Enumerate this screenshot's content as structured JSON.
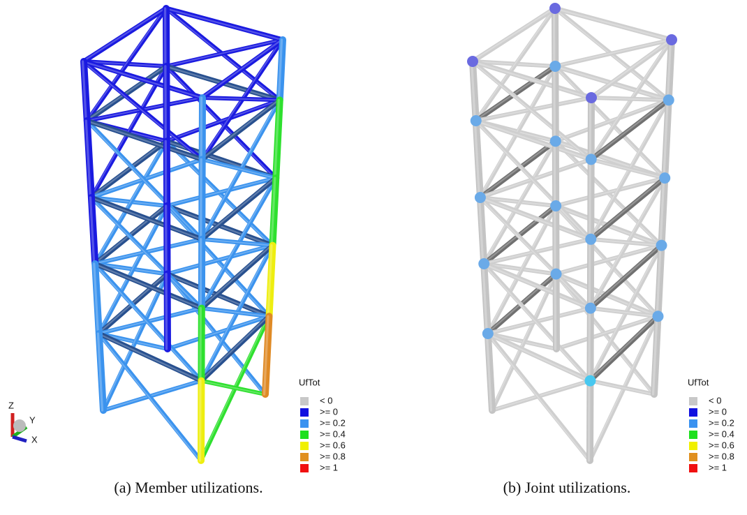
{
  "panels": [
    {
      "caption": "(a) Member utilizations.",
      "legend": {
        "title": "UfTot",
        "items": [
          {
            "label": "< 0",
            "color": "#c8c8c8"
          },
          {
            "label": ">= 0",
            "color": "#1010e0"
          },
          {
            "label": ">= 0.2",
            "color": "#3a92f0"
          },
          {
            "label": ">= 0.4",
            "color": "#1ee01e"
          },
          {
            "label": ">= 0.6",
            "color": "#f0f000"
          },
          {
            "label": ">= 0.8",
            "color": "#e0901e"
          },
          {
            "label": ">= 1",
            "color": "#f01010"
          }
        ]
      }
    },
    {
      "caption": "(b) Joint utilizations.",
      "legend": {
        "title": "UfTot",
        "items": [
          {
            "label": "< 0",
            "color": "#c8c8c8"
          },
          {
            "label": ">= 0",
            "color": "#1010e0"
          },
          {
            "label": ">= 0.2",
            "color": "#3a92f0"
          },
          {
            "label": ">= 0.4",
            "color": "#1ee01e"
          },
          {
            "label": ">= 0.6",
            "color": "#f0f000"
          },
          {
            "label": ">= 0.8",
            "color": "#e0901e"
          },
          {
            "label": ">= 1",
            "color": "#f01010"
          }
        ]
      }
    }
  ],
  "axes_triad": {
    "z": "Z",
    "y": "Y",
    "x": "X"
  }
}
